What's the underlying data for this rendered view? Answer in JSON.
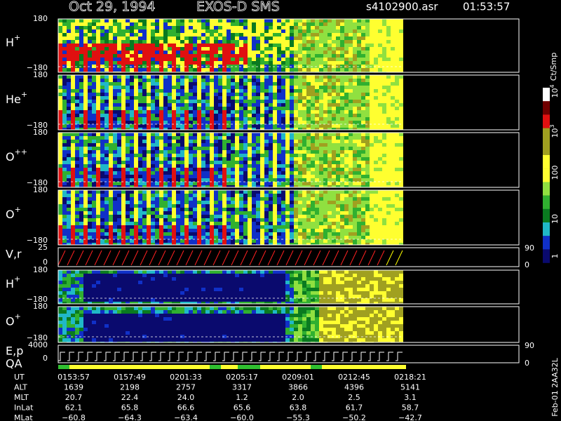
{
  "header": {
    "date": "Oct 29, 1994",
    "instrument": "EXOS-D SMS",
    "file": "s4102900.asr",
    "time": "01:53:57"
  },
  "panels": [
    {
      "label": "H",
      "sup": "+",
      "ticks": [
        "180",
        "−180"
      ]
    },
    {
      "label": "He",
      "sup": "+",
      "ticks": [
        "180",
        "−180"
      ]
    },
    {
      "label": "O",
      "sup": "++",
      "ticks": [
        "180",
        "−180"
      ]
    },
    {
      "label": "O",
      "sup": "+",
      "ticks": [
        "180",
        "−180"
      ]
    },
    {
      "label": "V,r",
      "ticks": [
        "25",
        "0"
      ],
      "right_ticks": [
        "90",
        "0"
      ]
    },
    {
      "label": "H",
      "sup": "+",
      "ticks": [
        "180",
        "−180"
      ]
    },
    {
      "label": "O",
      "sup": "+",
      "ticks": [
        "180",
        "−180"
      ]
    },
    {
      "label": "E,p",
      "ticks": [
        "4000",
        "0"
      ],
      "right_ticks": [
        "90",
        "0"
      ]
    }
  ],
  "qa_label": "QA",
  "colorbar": {
    "label": "Ct/Smp",
    "ticks": [
      {
        "base": "10",
        "exp": "4"
      },
      {
        "base": "10",
        "exp": "3"
      },
      "100",
      "10",
      "1"
    ]
  },
  "table": {
    "rows": [
      [
        "UT",
        "0153:57",
        "0157:49",
        "0201:33",
        "0205:17",
        "0209:01",
        "0212:45",
        "0218:21"
      ],
      [
        "ALT",
        "1639",
        "2198",
        "2757",
        "3317",
        "3866",
        "4396",
        "5141"
      ],
      [
        "MLT",
        "20.7",
        "22.4",
        "24.0",
        "1.2",
        "2.0",
        "2.5",
        "3.1"
      ],
      [
        "InLat",
        "62.1",
        "65.8",
        "66.6",
        "65.6",
        "63.8",
        "61.7",
        "58.7"
      ],
      [
        "MLat",
        "−60.8",
        "−64.3",
        "−63.4",
        "−60.0",
        "−55.3",
        "−50.2",
        "−42.7"
      ]
    ]
  },
  "footer": "Feb-01 2AA32L"
}
